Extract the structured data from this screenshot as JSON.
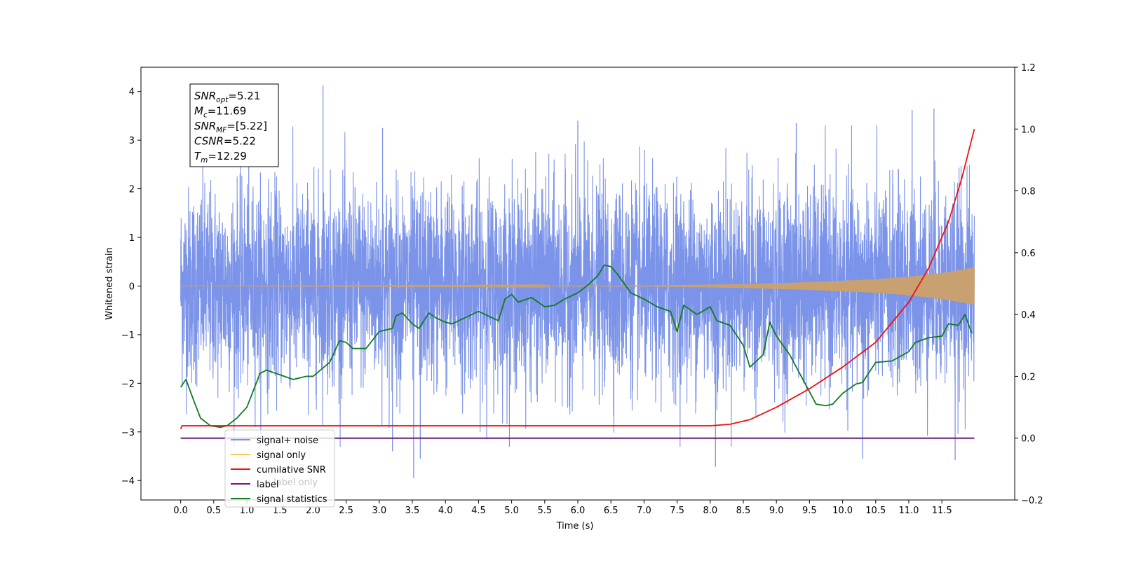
{
  "chart_data": {
    "type": "line",
    "xlabel": "Time (s)",
    "ylabel": "Whitened strain",
    "xlim": [
      -0.6,
      12.6
    ],
    "ylim": [
      -4.4,
      4.5
    ],
    "y2lim": [
      -0.2,
      1.2
    ],
    "x_ticks": [
      "0.0",
      "0.5",
      "1.0",
      "1.5",
      "2.0",
      "2.5",
      "3.0",
      "3.5",
      "4.0",
      "4.5",
      "5.0",
      "5.5",
      "6.0",
      "6.5",
      "7.0",
      "7.5",
      "8.0",
      "8.5",
      "9.0",
      "9.5",
      "10.0",
      "10.5",
      "11.0",
      "11.5"
    ],
    "y_ticks": [
      "4",
      "3",
      "2",
      "1",
      "0",
      "−1",
      "−2",
      "−3",
      "−4"
    ],
    "y2_ticks": [
      "1.2",
      "1.0",
      "0.8",
      "0.6",
      "0.4",
      "0.2",
      "0.0",
      "−0.2"
    ],
    "legend": [
      "signal+ noise",
      "signal only",
      "cumilative SNR",
      "label",
      "signal statistics"
    ],
    "legend_overlap_text": "label only",
    "legend_position": "lower-left",
    "grid": false,
    "info_box": [
      {
        "base": "SNR",
        "sub": "opt",
        "value": "=5.21"
      },
      {
        "base": "M",
        "sub": "c",
        "value": "=11.69"
      },
      {
        "base": "SNR",
        "sub": "MF",
        "value": "=[5.22]"
      },
      {
        "base": "CSNR",
        "sub": "",
        "value": "=5.22"
      },
      {
        "base": "T",
        "sub": "m",
        "value": "=12.29"
      }
    ],
    "series": [
      {
        "name": "signal+ noise",
        "axis": "left",
        "color": "#7b93e8",
        "t_range": [
          0.0,
          11.99
        ],
        "band_mean": [
          0,
          0
        ],
        "band_sigma": 1.0,
        "spikes": [
          {
            "x": 2.15,
            "y": 4.12
          },
          {
            "x": 11.38,
            "y": 3.65
          },
          {
            "x": 11.05,
            "y": 3.62
          },
          {
            "x": 3.05,
            "y": 3.25
          },
          {
            "x": 6.0,
            "y": 3.4
          },
          {
            "x": 9.3,
            "y": 3.35
          },
          {
            "x": 3.52,
            "y": -3.95
          },
          {
            "x": 8.08,
            "y": -3.72
          },
          {
            "x": 10.3,
            "y": -3.55
          },
          {
            "x": 11.7,
            "y": -3.58
          },
          {
            "x": 3.2,
            "y": -3.4
          },
          {
            "x": 3.62,
            "y": -3.55
          }
        ]
      },
      {
        "name": "signal only",
        "axis": "left",
        "color": "#c9a070",
        "amplitude_points": [
          [
            0.0,
            0.0
          ],
          [
            7.0,
            0.01
          ],
          [
            8.5,
            0.04
          ],
          [
            9.5,
            0.08
          ],
          [
            10.5,
            0.14
          ],
          [
            11.0,
            0.19
          ],
          [
            11.5,
            0.27
          ],
          [
            11.99,
            0.38
          ]
        ]
      },
      {
        "name": "cumilative SNR",
        "axis": "right",
        "color": "#ee1111",
        "points": [
          [
            0.0,
            0.03
          ],
          [
            0.02,
            0.04
          ],
          [
            8.0,
            0.04
          ],
          [
            8.3,
            0.045
          ],
          [
            8.6,
            0.06
          ],
          [
            9.0,
            0.1
          ],
          [
            9.5,
            0.16
          ],
          [
            10.0,
            0.23
          ],
          [
            10.5,
            0.31
          ],
          [
            11.0,
            0.44
          ],
          [
            11.3,
            0.55
          ],
          [
            11.6,
            0.7
          ],
          [
            11.8,
            0.84
          ],
          [
            11.99,
            1.0
          ]
        ]
      },
      {
        "name": "label",
        "axis": "right",
        "color": "#6a1b7c",
        "points": [
          [
            0.0,
            0.0
          ],
          [
            11.99,
            0.0
          ]
        ]
      },
      {
        "name": "signal statistics",
        "axis": "right",
        "color": "#117a22",
        "points": [
          [
            0.0,
            0.165
          ],
          [
            0.08,
            0.19
          ],
          [
            0.2,
            0.12
          ],
          [
            0.3,
            0.065
          ],
          [
            0.45,
            0.04
          ],
          [
            0.6,
            0.035
          ],
          [
            0.7,
            0.04
          ],
          [
            0.85,
            0.065
          ],
          [
            1.0,
            0.1
          ],
          [
            1.2,
            0.21
          ],
          [
            1.3,
            0.22
          ],
          [
            1.5,
            0.205
          ],
          [
            1.7,
            0.19
          ],
          [
            1.9,
            0.2
          ],
          [
            2.0,
            0.2
          ],
          [
            2.25,
            0.245
          ],
          [
            2.4,
            0.315
          ],
          [
            2.5,
            0.31
          ],
          [
            2.6,
            0.29
          ],
          [
            2.8,
            0.29
          ],
          [
            3.0,
            0.345
          ],
          [
            3.2,
            0.355
          ],
          [
            3.25,
            0.395
          ],
          [
            3.35,
            0.405
          ],
          [
            3.5,
            0.37
          ],
          [
            3.6,
            0.355
          ],
          [
            3.75,
            0.405
          ],
          [
            3.85,
            0.39
          ],
          [
            4.0,
            0.375
          ],
          [
            4.1,
            0.37
          ],
          [
            4.3,
            0.39
          ],
          [
            4.5,
            0.41
          ],
          [
            4.7,
            0.39
          ],
          [
            4.8,
            0.38
          ],
          [
            4.9,
            0.45
          ],
          [
            5.0,
            0.465
          ],
          [
            5.1,
            0.44
          ],
          [
            5.3,
            0.455
          ],
          [
            5.5,
            0.425
          ],
          [
            5.65,
            0.43
          ],
          [
            5.8,
            0.45
          ],
          [
            6.0,
            0.47
          ],
          [
            6.15,
            0.495
          ],
          [
            6.3,
            0.525
          ],
          [
            6.4,
            0.56
          ],
          [
            6.5,
            0.555
          ],
          [
            6.6,
            0.53
          ],
          [
            6.8,
            0.47
          ],
          [
            7.0,
            0.45
          ],
          [
            7.2,
            0.425
          ],
          [
            7.4,
            0.41
          ],
          [
            7.5,
            0.345
          ],
          [
            7.6,
            0.43
          ],
          [
            7.8,
            0.4
          ],
          [
            8.0,
            0.425
          ],
          [
            8.1,
            0.38
          ],
          [
            8.3,
            0.365
          ],
          [
            8.5,
            0.3
          ],
          [
            8.6,
            0.23
          ],
          [
            8.8,
            0.27
          ],
          [
            8.9,
            0.375
          ],
          [
            9.0,
            0.33
          ],
          [
            9.2,
            0.27
          ],
          [
            9.4,
            0.19
          ],
          [
            9.6,
            0.11
          ],
          [
            9.75,
            0.105
          ],
          [
            9.85,
            0.11
          ],
          [
            10.0,
            0.145
          ],
          [
            10.2,
            0.175
          ],
          [
            10.3,
            0.18
          ],
          [
            10.5,
            0.245
          ],
          [
            10.75,
            0.25
          ],
          [
            11.0,
            0.28
          ],
          [
            11.1,
            0.31
          ],
          [
            11.3,
            0.325
          ],
          [
            11.5,
            0.33
          ],
          [
            11.6,
            0.37
          ],
          [
            11.75,
            0.365
          ],
          [
            11.85,
            0.4
          ],
          [
            11.95,
            0.34
          ]
        ]
      }
    ]
  }
}
